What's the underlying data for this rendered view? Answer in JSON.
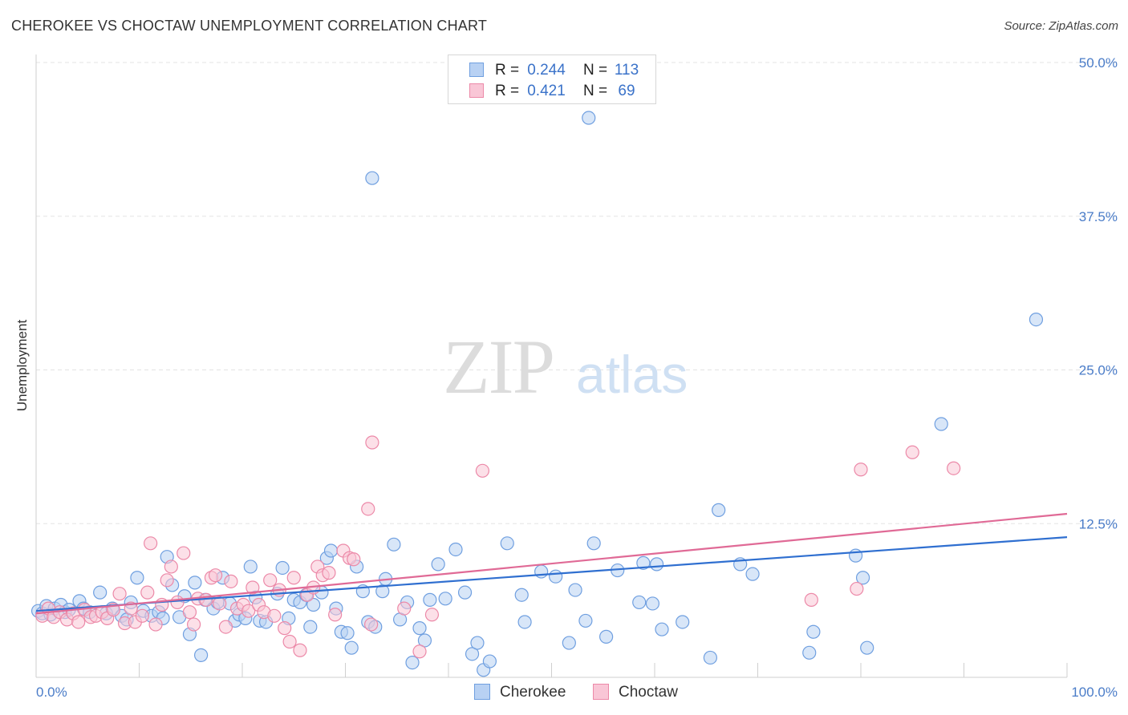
{
  "header": {
    "title": "CHEROKEE VS CHOCTAW UNEMPLOYMENT CORRELATION CHART",
    "source": "Source: ZipAtlas.com"
  },
  "watermark": {
    "zip": "ZIP",
    "atlas": "atlas"
  },
  "stats": [
    {
      "r_label": "R =",
      "r_value": "0.244",
      "n_label": "N =",
      "n_value": "113",
      "fill": "#b8d1f3",
      "stroke": "#6f9fe0"
    },
    {
      "r_label": "R =",
      "r_value": "0.421",
      "n_label": "N =",
      "n_value": "69",
      "fill": "#f9c6d6",
      "stroke": "#ec89a8"
    }
  ],
  "legend": [
    {
      "label": "Cherokee",
      "fill": "#b8d1f3",
      "stroke": "#6f9fe0"
    },
    {
      "label": "Choctaw",
      "fill": "#f9c6d6",
      "stroke": "#ec89a8"
    }
  ],
  "colors": {
    "cherokee_line": "#2f6fd0",
    "choctaw_line": "#e06a96",
    "tick_text": "#4a7cc8",
    "grid": "#e3e3e3"
  },
  "chart_data": {
    "type": "scatter",
    "title": "CHEROKEE VS CHOCTAW UNEMPLOYMENT CORRELATION CHART",
    "xlabel": "",
    "ylabel": "Unemployment",
    "xlim": [
      0,
      100
    ],
    "ylim": [
      0,
      52
    ],
    "x_tick_labels": [
      {
        "value": 0,
        "label": "0.0%"
      },
      {
        "value": 100,
        "label": "100.0%"
      }
    ],
    "y_tick_labels": [
      {
        "value": 12.5,
        "label": "12.5%"
      },
      {
        "value": 25,
        "label": "25.0%"
      },
      {
        "value": 37.5,
        "label": "37.5%"
      },
      {
        "value": 50,
        "label": "50.0%"
      }
    ],
    "x_minor_ticks": [
      0,
      10,
      20,
      30,
      40,
      50,
      60,
      70,
      80,
      90,
      100
    ],
    "grid": true,
    "legend_position": "bottom-center",
    "series": [
      {
        "name": "Cherokee",
        "color": "#6f9fe0",
        "fill": "#b8d1f3",
        "trend": {
          "x": [
            0,
            100
          ],
          "y": [
            5.4,
            11.4
          ]
        },
        "points": [
          [
            0.2,
            5.4
          ],
          [
            0.6,
            5.2
          ],
          [
            1.0,
            5.8
          ],
          [
            1.4,
            5.1
          ],
          [
            1.8,
            5.6
          ],
          [
            2.4,
            5.9
          ],
          [
            2.8,
            5.3
          ],
          [
            3.2,
            5.5
          ],
          [
            4.2,
            6.2
          ],
          [
            4.6,
            5.6
          ],
          [
            5.2,
            5.3
          ],
          [
            6.2,
            6.9
          ],
          [
            6.8,
            5.2
          ],
          [
            7.4,
            5.6
          ],
          [
            8.3,
            5.0
          ],
          [
            8.8,
            4.7
          ],
          [
            9.2,
            6.1
          ],
          [
            9.8,
            8.1
          ],
          [
            10.4,
            5.4
          ],
          [
            11.2,
            5.0
          ],
          [
            11.9,
            5.3
          ],
          [
            12.3,
            4.8
          ],
          [
            12.7,
            9.8
          ],
          [
            13.2,
            7.5
          ],
          [
            13.9,
            4.9
          ],
          [
            14.4,
            6.6
          ],
          [
            14.9,
            3.5
          ],
          [
            15.4,
            7.7
          ],
          [
            16.0,
            1.8
          ],
          [
            16.4,
            6.3
          ],
          [
            17.2,
            5.6
          ],
          [
            17.6,
            6.1
          ],
          [
            18.1,
            8.1
          ],
          [
            18.8,
            6.0
          ],
          [
            19.3,
            4.6
          ],
          [
            19.7,
            5.1
          ],
          [
            20.3,
            4.8
          ],
          [
            20.8,
            9.0
          ],
          [
            21.3,
            6.5
          ],
          [
            21.7,
            4.6
          ],
          [
            22.3,
            4.5
          ],
          [
            23.4,
            6.8
          ],
          [
            23.9,
            8.9
          ],
          [
            24.5,
            4.8
          ],
          [
            25.0,
            6.3
          ],
          [
            25.6,
            6.1
          ],
          [
            26.2,
            6.7
          ],
          [
            26.6,
            4.1
          ],
          [
            26.9,
            5.9
          ],
          [
            27.7,
            6.9
          ],
          [
            28.2,
            9.7
          ],
          [
            28.6,
            10.3
          ],
          [
            29.1,
            5.6
          ],
          [
            29.6,
            3.7
          ],
          [
            30.2,
            3.6
          ],
          [
            30.6,
            2.4
          ],
          [
            31.1,
            9.0
          ],
          [
            31.7,
            7.0
          ],
          [
            32.2,
            4.5
          ],
          [
            32.6,
            40.6
          ],
          [
            32.9,
            4.1
          ],
          [
            33.6,
            7.0
          ],
          [
            33.9,
            8.0
          ],
          [
            34.7,
            10.8
          ],
          [
            35.3,
            4.7
          ],
          [
            36.0,
            6.1
          ],
          [
            36.5,
            1.2
          ],
          [
            37.2,
            4.0
          ],
          [
            37.7,
            3.0
          ],
          [
            38.2,
            6.3
          ],
          [
            39.0,
            9.2
          ],
          [
            39.7,
            6.4
          ],
          [
            40.7,
            10.4
          ],
          [
            41.6,
            6.9
          ],
          [
            42.3,
            1.9
          ],
          [
            42.8,
            2.8
          ],
          [
            43.4,
            0.6
          ],
          [
            44.0,
            1.3
          ],
          [
            45.7,
            10.9
          ],
          [
            47.1,
            6.7
          ],
          [
            47.4,
            4.5
          ],
          [
            49.0,
            8.6
          ],
          [
            50.4,
            8.2
          ],
          [
            51.7,
            2.8
          ],
          [
            52.3,
            7.1
          ],
          [
            53.3,
            4.6
          ],
          [
            53.6,
            45.5
          ],
          [
            54.1,
            10.9
          ],
          [
            55.3,
            3.3
          ],
          [
            56.4,
            8.7
          ],
          [
            58.5,
            6.1
          ],
          [
            58.9,
            9.3
          ],
          [
            59.8,
            6.0
          ],
          [
            60.2,
            9.2
          ],
          [
            60.7,
            3.9
          ],
          [
            62.7,
            4.5
          ],
          [
            65.4,
            1.6
          ],
          [
            66.2,
            13.6
          ],
          [
            68.3,
            9.2
          ],
          [
            69.5,
            8.4
          ],
          [
            75.0,
            2.0
          ],
          [
            75.4,
            3.7
          ],
          [
            79.5,
            9.9
          ],
          [
            80.2,
            8.1
          ],
          [
            80.6,
            2.4
          ],
          [
            87.8,
            20.6
          ],
          [
            97.0,
            29.1
          ]
        ]
      },
      {
        "name": "Choctaw",
        "color": "#ec89a8",
        "fill": "#f9c6d6",
        "trend": {
          "x": [
            0,
            100
          ],
          "y": [
            5.2,
            13.3
          ]
        },
        "points": [
          [
            0.6,
            5.0
          ],
          [
            1.2,
            5.6
          ],
          [
            1.7,
            4.9
          ],
          [
            2.3,
            5.3
          ],
          [
            3.0,
            4.7
          ],
          [
            3.6,
            5.2
          ],
          [
            4.1,
            4.5
          ],
          [
            4.7,
            5.5
          ],
          [
            5.3,
            4.9
          ],
          [
            5.8,
            5.0
          ],
          [
            6.4,
            5.3
          ],
          [
            6.9,
            4.8
          ],
          [
            7.5,
            5.5
          ],
          [
            8.1,
            6.8
          ],
          [
            8.6,
            4.4
          ],
          [
            9.2,
            5.6
          ],
          [
            9.6,
            4.5
          ],
          [
            10.3,
            5.0
          ],
          [
            10.8,
            6.9
          ],
          [
            11.1,
            10.9
          ],
          [
            11.6,
            4.3
          ],
          [
            12.2,
            5.9
          ],
          [
            12.7,
            7.9
          ],
          [
            13.1,
            9.0
          ],
          [
            13.7,
            6.1
          ],
          [
            14.3,
            10.1
          ],
          [
            14.9,
            5.3
          ],
          [
            15.3,
            4.3
          ],
          [
            15.7,
            6.4
          ],
          [
            16.5,
            6.3
          ],
          [
            17.0,
            8.1
          ],
          [
            17.4,
            8.3
          ],
          [
            17.8,
            6.0
          ],
          [
            18.4,
            4.1
          ],
          [
            18.9,
            7.8
          ],
          [
            19.5,
            5.6
          ],
          [
            20.1,
            5.9
          ],
          [
            20.6,
            5.4
          ],
          [
            21.0,
            7.3
          ],
          [
            21.6,
            5.9
          ],
          [
            22.1,
            5.3
          ],
          [
            22.7,
            7.9
          ],
          [
            23.1,
            5.0
          ],
          [
            23.6,
            7.1
          ],
          [
            24.1,
            4.0
          ],
          [
            24.6,
            2.9
          ],
          [
            25.0,
            8.1
          ],
          [
            25.6,
            2.2
          ],
          [
            26.3,
            6.7
          ],
          [
            26.9,
            7.3
          ],
          [
            27.3,
            9.0
          ],
          [
            27.8,
            8.3
          ],
          [
            28.4,
            8.5
          ],
          [
            29.0,
            5.1
          ],
          [
            29.8,
            10.3
          ],
          [
            30.4,
            9.7
          ],
          [
            30.8,
            9.6
          ],
          [
            32.2,
            13.7
          ],
          [
            32.5,
            4.3
          ],
          [
            32.6,
            19.1
          ],
          [
            35.7,
            5.6
          ],
          [
            37.2,
            2.1
          ],
          [
            38.4,
            5.1
          ],
          [
            43.3,
            16.8
          ],
          [
            75.2,
            6.3
          ],
          [
            79.6,
            7.2
          ],
          [
            80.0,
            16.9
          ],
          [
            85.0,
            18.3
          ],
          [
            89.0,
            17.0
          ]
        ]
      }
    ]
  }
}
